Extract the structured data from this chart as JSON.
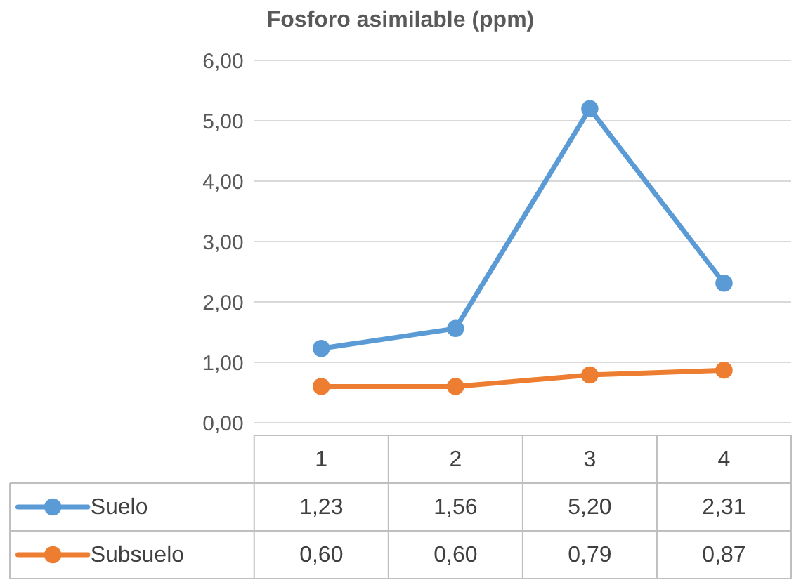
{
  "chart_data": {
    "type": "line",
    "title": "Fosforo asimilable (ppm)",
    "categories": [
      "1",
      "2",
      "3",
      "4"
    ],
    "series": [
      {
        "name": "Suelo",
        "color": "#5b9bd5",
        "values": [
          1.23,
          1.56,
          5.2,
          2.31
        ],
        "value_labels": [
          "1,23",
          "1,56",
          "5,20",
          "2,31"
        ]
      },
      {
        "name": "Subsuelo",
        "color": "#ed7d31",
        "values": [
          0.6,
          0.6,
          0.79,
          0.87
        ],
        "value_labels": [
          "0,60",
          "0,60",
          "0,79",
          "0,87"
        ]
      }
    ],
    "ylim": [
      0,
      6
    ],
    "yticks": [
      {
        "value": 0,
        "label": "0,00"
      },
      {
        "value": 1,
        "label": "1,00"
      },
      {
        "value": 2,
        "label": "2,00"
      },
      {
        "value": 3,
        "label": "3,00"
      },
      {
        "value": 4,
        "label": "4,00"
      },
      {
        "value": 5,
        "label": "5,00"
      },
      {
        "value": 6,
        "label": "6,00"
      }
    ],
    "grid": "y",
    "legend": "bottom",
    "marker": "circle",
    "line_style": "solid"
  }
}
